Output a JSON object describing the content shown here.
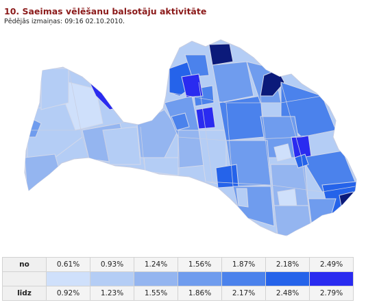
{
  "header": {
    "title": "10. Saeimas vēlēšanu balsotāju aktivitāte",
    "updated": "Pēdējās izmaiņas: 09:16 02.10.2010."
  },
  "legend": {
    "from_label": "no",
    "to_label": "līdz",
    "bins": [
      {
        "from": "0.61%",
        "to": "0.92%",
        "color": "#cfe0fb"
      },
      {
        "from": "0.93%",
        "to": "1.23%",
        "color": "#b4cdf5"
      },
      {
        "from": "1.24%",
        "to": "1.55%",
        "color": "#94b5f0"
      },
      {
        "from": "1.56%",
        "to": "1.86%",
        "color": "#6f9cee"
      },
      {
        "from": "1.87%",
        "to": "2.17%",
        "color": "#4b82ec"
      },
      {
        "from": "2.18%",
        "to": "2.48%",
        "color": "#2563ea"
      },
      {
        "from": "2.49%",
        "to": "2.79%",
        "color": "#2a2bf0"
      }
    ]
  },
  "map": {
    "region": "Latvia",
    "border_color": "#c8cde0",
    "dark_region_color": "#0b1a7a"
  }
}
